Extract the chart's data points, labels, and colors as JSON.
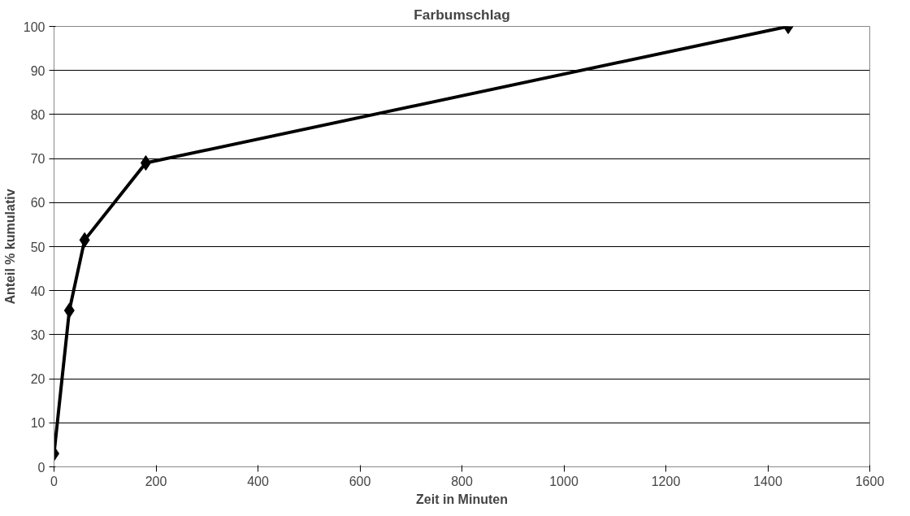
{
  "chart_data": {
    "type": "line",
    "title": "Farbumschlag",
    "xlabel": "Zeit in Minuten",
    "ylabel": "Anteil % kumulativ",
    "x": [
      0,
      30,
      60,
      180,
      1440
    ],
    "series": [
      {
        "color": "#000000",
        "values": [
          3,
          35.5,
          51.5,
          69,
          100
        ]
      }
    ],
    "xlim": [
      0,
      1600
    ],
    "xticks": [
      0,
      200,
      400,
      600,
      800,
      1000,
      1200,
      1400,
      1600
    ],
    "ylim": [
      0,
      100
    ],
    "yticks": [
      0,
      10,
      20,
      30,
      40,
      50,
      60,
      70,
      80,
      90,
      100
    ],
    "grid": "y",
    "marker": "diamond",
    "line_style": "solid"
  }
}
